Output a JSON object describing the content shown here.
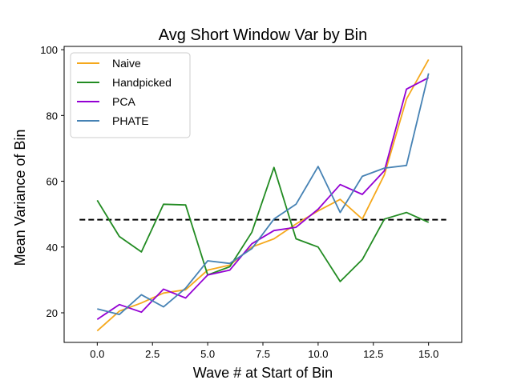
{
  "chart_data": {
    "type": "line",
    "title": "Avg Short Window Var by Bin",
    "xlabel": "Wave # at Start of Bin",
    "ylabel": "Mean Variance of Bin",
    "xlim": [
      -1.5,
      16.5
    ],
    "ylim": [
      11,
      101
    ],
    "xticks": [
      0.0,
      2.5,
      5.0,
      7.5,
      10.0,
      12.5,
      15.0
    ],
    "xtick_labels": [
      "0.0",
      "2.5",
      "5.0",
      "7.5",
      "10.0",
      "12.5",
      "15.0"
    ],
    "yticks": [
      20,
      40,
      60,
      80,
      100
    ],
    "ytick_labels": [
      "20",
      "40",
      "60",
      "80",
      "100"
    ],
    "grid": false,
    "legend_position": "top-left",
    "x": [
      0,
      1,
      2,
      3,
      4,
      5,
      6,
      7,
      8,
      9,
      10,
      11,
      12,
      13,
      14,
      15
    ],
    "series": [
      {
        "name": "Naive",
        "color": "#f5a81c",
        "values": [
          14.5,
          20.5,
          23.0,
          26.0,
          27.0,
          33.0,
          34.5,
          40.0,
          42.5,
          47.0,
          51.0,
          54.5,
          48.5,
          62.0,
          85.0,
          97.0
        ]
      },
      {
        "name": "Handpicked",
        "color": "#228b22",
        "values": [
          54.2,
          43.2,
          38.5,
          53.0,
          52.8,
          31.5,
          34.0,
          44.5,
          64.2,
          42.5,
          40.0,
          29.5,
          36.2,
          48.5,
          50.5,
          47.5
        ]
      },
      {
        "name": "PCA",
        "color": "#9400d3",
        "values": [
          18.0,
          22.5,
          20.2,
          27.2,
          24.5,
          31.5,
          33.0,
          41.0,
          45.0,
          46.0,
          51.5,
          59.0,
          56.0,
          63.2,
          88.0,
          91.5
        ]
      },
      {
        "name": "PHATE",
        "color": "#4682b4",
        "values": [
          21.2,
          19.5,
          25.5,
          21.8,
          27.5,
          35.8,
          35.0,
          39.5,
          48.5,
          53.0,
          64.5,
          50.5,
          61.5,
          64.0,
          64.8,
          92.8
        ]
      }
    ],
    "reference_line": {
      "y": 48.3,
      "x_range": [
        -0.8,
        15.8
      ],
      "color": "#000000",
      "style": "dashed"
    }
  }
}
